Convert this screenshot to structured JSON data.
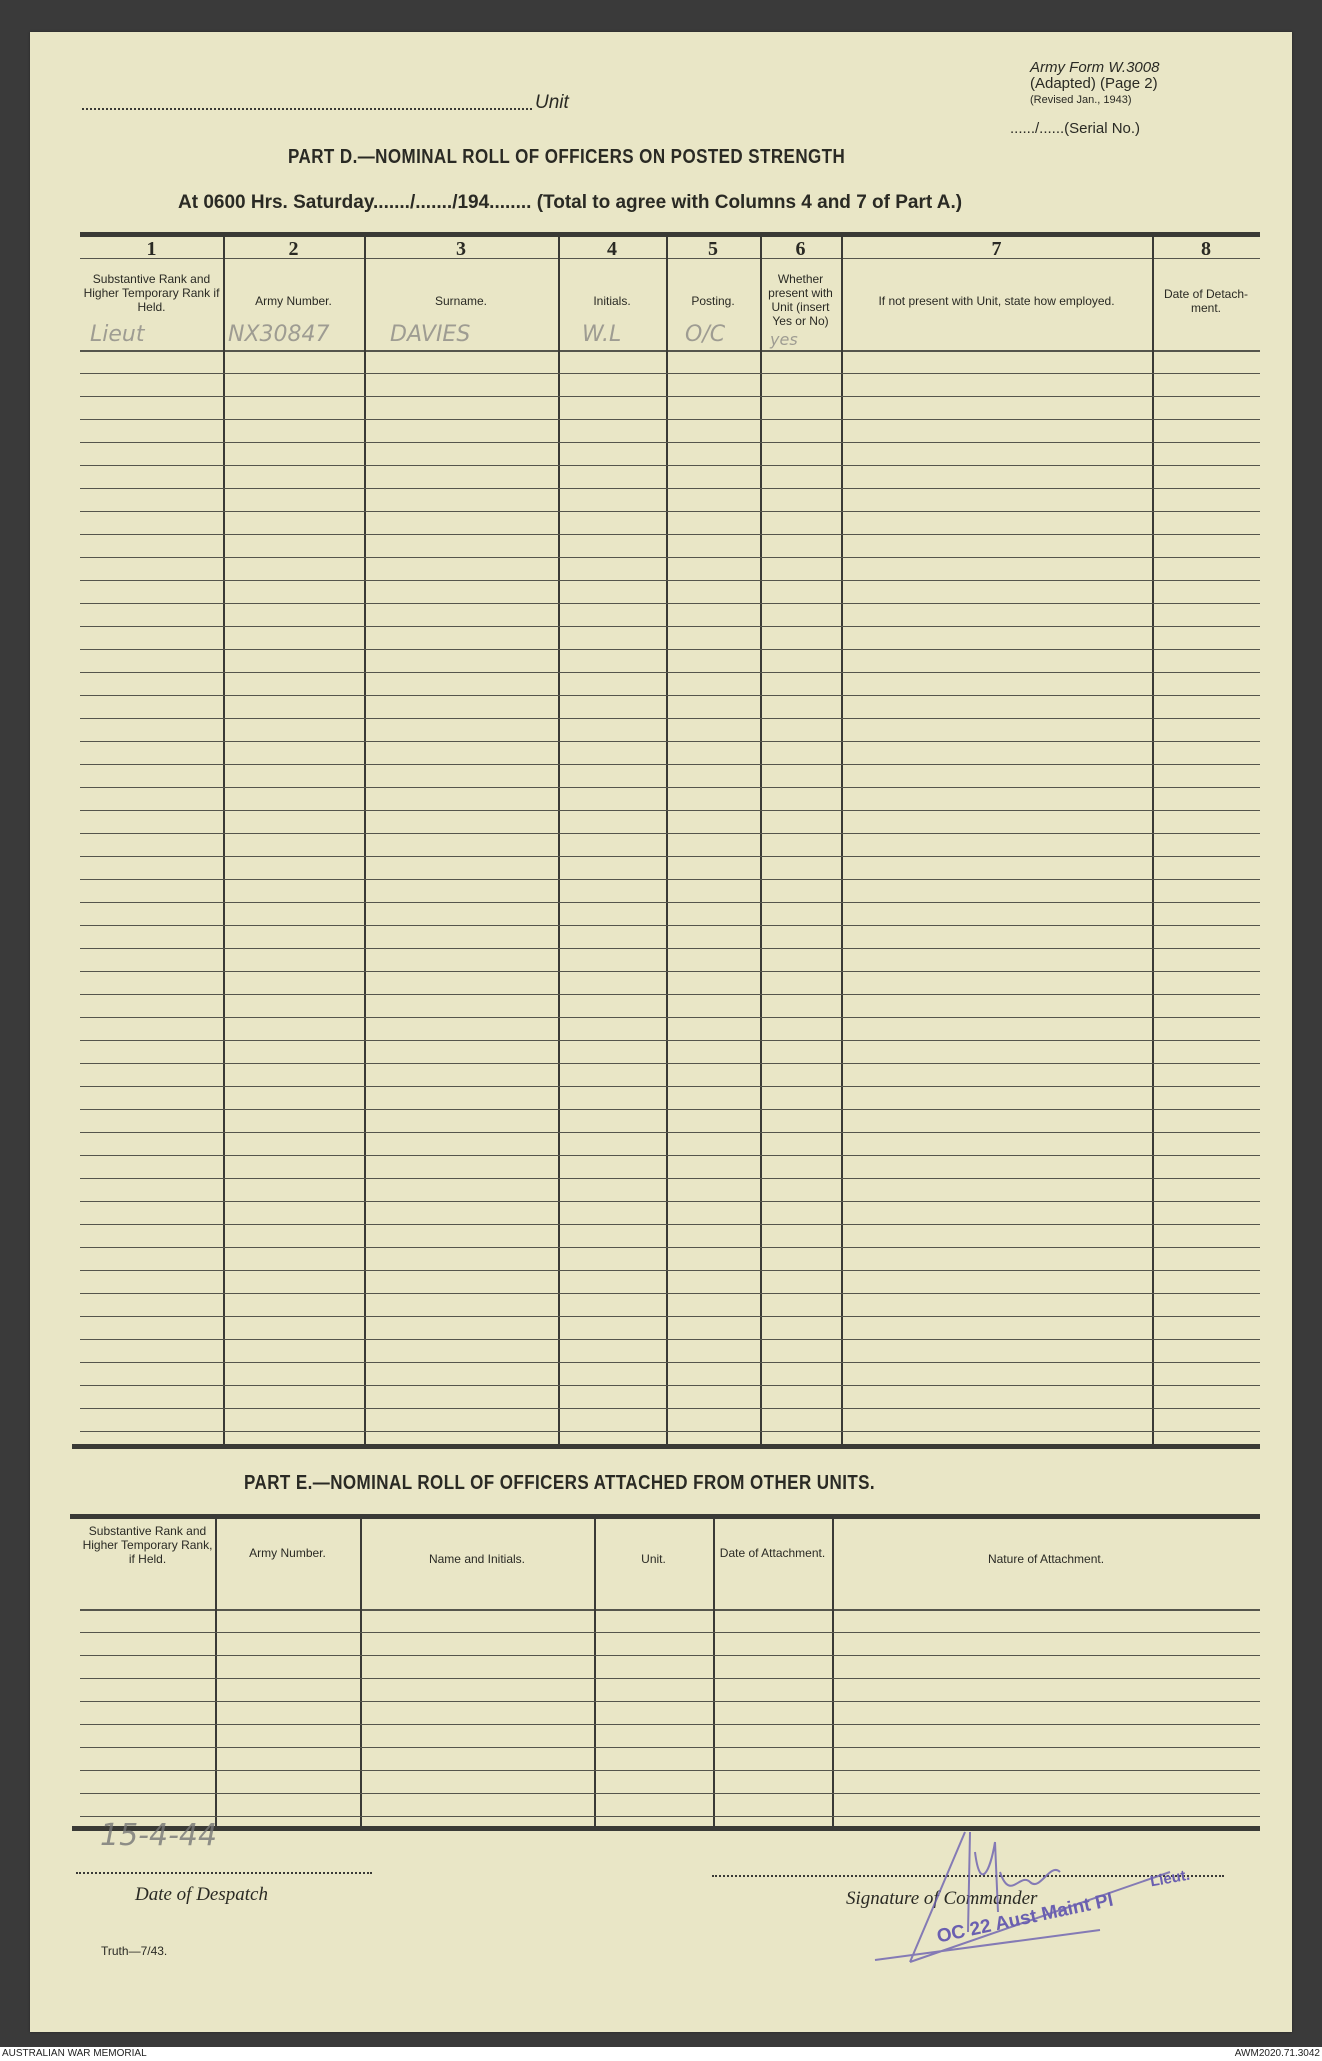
{
  "form_id": {
    "line1": "Army Form W.3008",
    "line2": "(Adapted) (Page 2)",
    "line3": "(Revised Jan., 1943)"
  },
  "unit_label": "Unit",
  "serial_label": "....../......(Serial No.)",
  "part_d": {
    "title": "PART D.—NOMINAL ROLL OF OFFICERS ON POSTED STRENGTH",
    "subtitle_prefix": "At 0600 Hrs. Saturday......./......./194........",
    "subtitle_suffix": "(Total to agree with Columns 4 and 7 of Part A.)",
    "columns": [
      {
        "num": "1",
        "label": "Substantive Rank and Higher Temporary Rank if Held."
      },
      {
        "num": "2",
        "label": "Army Number."
      },
      {
        "num": "3",
        "label": "Surname."
      },
      {
        "num": "4",
        "label": "Initials."
      },
      {
        "num": "5",
        "label": "Posting."
      },
      {
        "num": "6",
        "label": "Whether present with Unit (insert Yes or No)"
      },
      {
        "num": "7",
        "label": "If not present with Unit, state how employed."
      },
      {
        "num": "8",
        "label": "Date of Detach-ment."
      }
    ],
    "entry": {
      "rank": "Lieut",
      "army_number": "NX30847",
      "surname": "DAVIES",
      "initials": "W.L",
      "posting": "O/C",
      "present": "yes"
    }
  },
  "part_e": {
    "title": "PART E.—NOMINAL ROLL OF OFFICERS ATTACHED FROM OTHER UNITS.",
    "columns": [
      "Substantive Rank and Higher Temporary Rank, if Held.",
      "Army Number.",
      "Name and Initials.",
      "Unit.",
      "Date of Attachment.",
      "Nature of Attachment."
    ]
  },
  "footer": {
    "despatch_date_handwritten": "15-4-44",
    "date_of_despatch_label": "Date of Despatch",
    "printer_mark": "Truth—7/43.",
    "signature_label": "Signature of Commander",
    "stamp_rank": "Lieut.",
    "stamp_unit": "OC 22 Aust Maint Pl"
  },
  "archive": {
    "left": "AUSTRALIAN WAR MEMORIAL",
    "right": "AWM2020.71.3042"
  },
  "colors": {
    "paper": "#e9e6c6",
    "ink": "#2a2a24",
    "stamp": "#6a5fb0",
    "pencil": "#8c8a86"
  }
}
